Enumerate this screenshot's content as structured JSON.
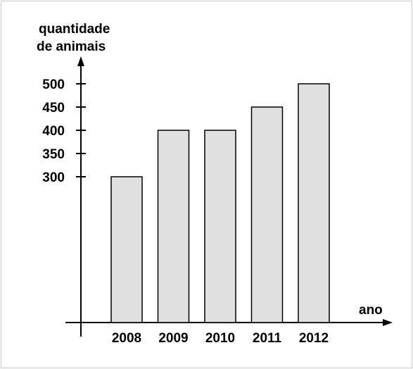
{
  "chart_data": {
    "type": "bar",
    "categories": [
      "2008",
      "2009",
      "2010",
      "2011",
      "2012"
    ],
    "values": [
      300,
      400,
      400,
      450,
      500
    ],
    "ylabel_line1": "quantidade",
    "ylabel_line2": "de animais",
    "xlabel": "ano",
    "yticks": [
      300,
      350,
      400,
      450,
      500
    ],
    "ytick_labels": [
      "300",
      "350",
      "400",
      "450",
      "500"
    ],
    "bar_fill": "#e0e0e0",
    "bar_stroke": "#000000",
    "grid": false,
    "legend": "none"
  }
}
